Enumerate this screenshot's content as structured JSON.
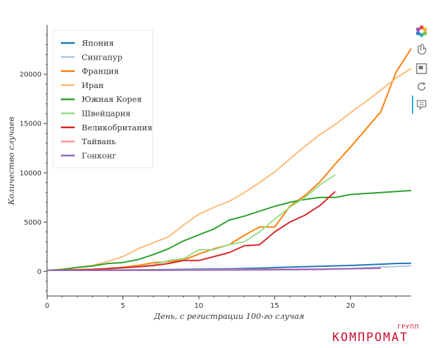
{
  "chart_data": {
    "type": "line",
    "title": "",
    "xlabel": "День, с регистрации 100-го случая",
    "ylabel": "Количество случаев",
    "xlim": [
      0,
      24
    ],
    "ylim": [
      -2500,
      25000
    ],
    "x_ticks": [
      0,
      5,
      10,
      15,
      20
    ],
    "y_ticks": [
      0,
      5000,
      10000,
      15000,
      20000
    ],
    "grid": false,
    "legend_position": "top-left",
    "series": [
      {
        "name": "Япония",
        "color": "#1f77b4",
        "x": [
          0,
          2,
          4,
          6,
          8,
          10,
          12,
          14,
          16,
          18,
          20,
          22,
          23,
          24
        ],
        "y": [
          100,
          120,
          140,
          160,
          190,
          220,
          260,
          330,
          430,
          520,
          600,
          730,
          800,
          820
        ]
      },
      {
        "name": "Сингапур",
        "color": "#aec7e8",
        "x": [
          0,
          4,
          8,
          12,
          16,
          20,
          24
        ],
        "y": [
          100,
          110,
          125,
          150,
          200,
          300,
          560
        ]
      },
      {
        "name": "Франция",
        "color": "#ff7f0e",
        "x": [
          0,
          1,
          2,
          3,
          4,
          5,
          6,
          7,
          8,
          9,
          10,
          11,
          12,
          13,
          14,
          15,
          16,
          17,
          18,
          19,
          20,
          21,
          22,
          23,
          24
        ],
        "y": [
          100,
          130,
          190,
          210,
          290,
          420,
          610,
          870,
          1000,
          1150,
          1750,
          2300,
          2700,
          3660,
          4500,
          4500,
          6600,
          7700,
          9100,
          10900,
          12600,
          14400,
          16200,
          20200,
          22600
        ]
      },
      {
        "name": "Иран",
        "color": "#ffbb78",
        "x": [
          0,
          1,
          2,
          3,
          4,
          5,
          6,
          7,
          8,
          9,
          10,
          11,
          12,
          13,
          14,
          15,
          16,
          17,
          18,
          19,
          20,
          21,
          22,
          23,
          24
        ],
        "y": [
          100,
          200,
          400,
          600,
          1000,
          1500,
          2300,
          2900,
          3500,
          4700,
          5800,
          6500,
          7100,
          8000,
          9000,
          10100,
          11400,
          12700,
          13900,
          14900,
          16100,
          17200,
          18400,
          19600,
          20600
        ]
      },
      {
        "name": "Южная Корея",
        "color": "#2ca02c",
        "x": [
          0,
          1,
          2,
          3,
          4,
          5,
          6,
          7,
          8,
          9,
          10,
          11,
          12,
          13,
          14,
          15,
          16,
          17,
          18,
          19,
          20,
          21,
          22,
          23,
          24
        ],
        "y": [
          100,
          200,
          400,
          550,
          800,
          900,
          1200,
          1700,
          2300,
          3100,
          3700,
          4300,
          5200,
          5600,
          6100,
          6600,
          7000,
          7300,
          7500,
          7500,
          7800,
          7900,
          8000,
          8100,
          8200
        ]
      },
      {
        "name": "Швейцария",
        "color": "#98df8a",
        "x": [
          0,
          1,
          2,
          3,
          4,
          5,
          6,
          7,
          8,
          9,
          10,
          11,
          12,
          13,
          14,
          15,
          16,
          17,
          18,
          19
        ],
        "y": [
          100,
          110,
          150,
          210,
          260,
          370,
          490,
          650,
          1100,
          1300,
          2200,
          2200,
          2700,
          3000,
          4000,
          5300,
          6500,
          7500,
          8800,
          9800
        ]
      },
      {
        "name": "Великобритания",
        "color": "#d62728",
        "x": [
          0,
          1,
          2,
          3,
          4,
          5,
          6,
          7,
          8,
          9,
          10,
          11,
          12,
          13,
          14,
          15,
          16,
          17,
          18,
          19
        ],
        "y": [
          100,
          120,
          160,
          210,
          280,
          370,
          460,
          590,
          800,
          1100,
          1100,
          1500,
          1900,
          2600,
          2700,
          4000,
          5000,
          5700,
          6700,
          8100
        ]
      },
      {
        "name": "Тайвань",
        "color": "#ff9896",
        "x": [
          0,
          2,
          4,
          6,
          8,
          10,
          12,
          14,
          16,
          18,
          20,
          22
        ],
        "y": [
          100,
          110,
          120,
          130,
          150,
          170,
          190,
          200,
          220,
          240,
          260,
          290
        ]
      },
      {
        "name": "Гонконг",
        "color": "#9467bd",
        "x": [
          0,
          2,
          4,
          6,
          8,
          10,
          12,
          14,
          16,
          18,
          20,
          22
        ],
        "y": [
          100,
          100,
          110,
          110,
          120,
          130,
          140,
          150,
          170,
          200,
          270,
          340
        ]
      }
    ]
  },
  "toolbar": {
    "icons": [
      "bokeh-logo-icon",
      "pan-icon",
      "box-zoom-icon",
      "reset-icon",
      "hover-icon"
    ],
    "active_color": "#26aae1"
  },
  "watermark": {
    "main": "КОМПРОМАТ",
    "sub": "ГРУПП",
    "color": "#c8102e"
  }
}
